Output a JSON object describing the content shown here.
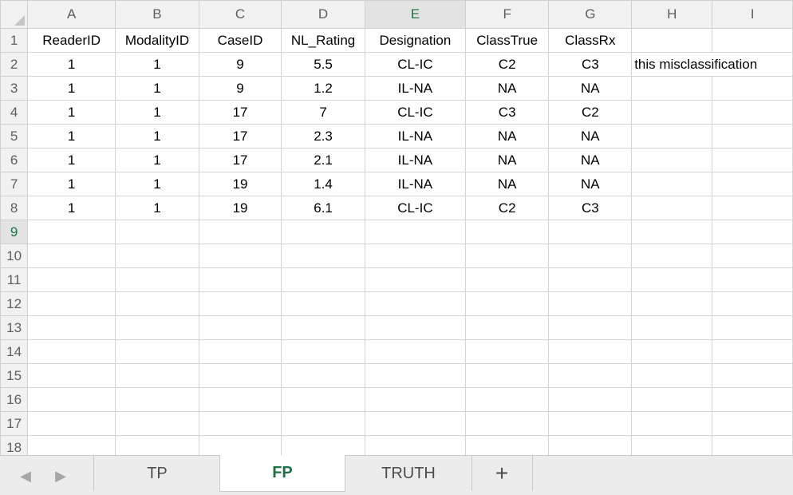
{
  "columns": [
    "A",
    "B",
    "C",
    "D",
    "E",
    "F",
    "G",
    "H",
    "I"
  ],
  "selected_column": "E",
  "selected_row": "9",
  "row_numbers": [
    "1",
    "2",
    "3",
    "4",
    "5",
    "6",
    "7",
    "8",
    "9",
    "10",
    "11",
    "12",
    "13",
    "14",
    "15",
    "16",
    "17",
    "18"
  ],
  "headers": [
    "ReaderID",
    "ModalityID",
    "CaseID",
    "NL_Rating",
    "Designation",
    "ClassTrue",
    "ClassRx"
  ],
  "rows": [
    [
      "1",
      "1",
      "9",
      "5.5",
      "CL-IC",
      "C2",
      "C3"
    ],
    [
      "1",
      "1",
      "9",
      "1.2",
      "IL-NA",
      "NA",
      "NA"
    ],
    [
      "1",
      "1",
      "17",
      "7",
      "CL-IC",
      "C3",
      "C2"
    ],
    [
      "1",
      "1",
      "17",
      "2.3",
      "IL-NA",
      "NA",
      "NA"
    ],
    [
      "1",
      "1",
      "17",
      "2.1",
      "IL-NA",
      "NA",
      "NA"
    ],
    [
      "1",
      "1",
      "19",
      "1.4",
      "IL-NA",
      "NA",
      "NA"
    ],
    [
      "1",
      "1",
      "19",
      "6.1",
      "CL-IC",
      "C2",
      "C3"
    ]
  ],
  "note_h2": "this misclassification",
  "tabs": [
    {
      "label": "TP",
      "active": false
    },
    {
      "label": "FP",
      "active": true
    },
    {
      "label": "TRUTH",
      "active": false
    }
  ],
  "add_tab_label": "+",
  "nav": {
    "prev": "◀",
    "next": "▶"
  }
}
